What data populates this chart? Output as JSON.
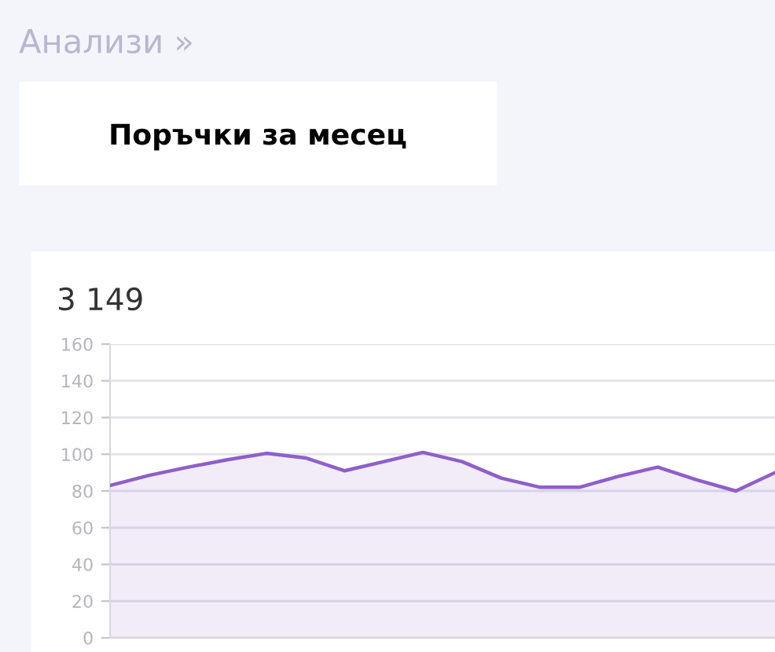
{
  "chart_data": {
    "type": "area",
    "title": "Поръчки за месец",
    "subtitle": "3 149",
    "annotations": [
      "Анализи »"
    ],
    "categories": [
      null,
      null,
      null,
      null,
      null,
      null,
      null,
      null,
      null,
      null,
      null,
      null,
      null,
      null,
      null,
      null,
      null,
      null
    ],
    "series": [
      {
        "color": "#8e5fc9",
        "values": [
          83,
          88.5,
          93,
          97,
          100.5,
          98,
          91,
          96,
          101,
          96,
          87,
          82,
          82,
          88,
          93,
          86,
          80,
          90
        ]
      }
    ],
    "ylim": [
      0,
      160
    ],
    "yticks": [
      0,
      20,
      40,
      60,
      80,
      100,
      120,
      140,
      160
    ],
    "grid": "y",
    "legend": false
  }
}
